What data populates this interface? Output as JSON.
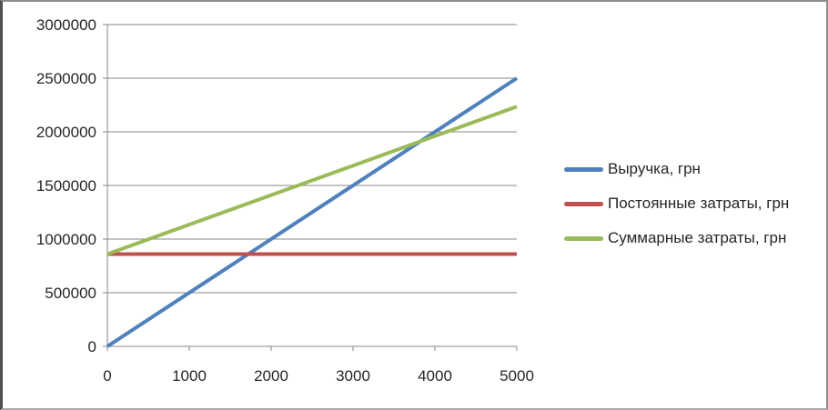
{
  "chart_data": {
    "type": "line",
    "title": "",
    "xlabel": "",
    "ylabel": "",
    "xlim": [
      0,
      5000
    ],
    "ylim": [
      0,
      3000000
    ],
    "x_ticks": [
      0,
      1000,
      2000,
      3000,
      4000,
      5000
    ],
    "y_ticks": [
      0,
      500000,
      1000000,
      1500000,
      2000000,
      2500000,
      3000000
    ],
    "grid": "horizontal",
    "legend_position": "right",
    "axis_color": "#878787",
    "gridline_color": "#878787",
    "tick_label_color": "#262626",
    "line_width": 4,
    "series": [
      {
        "name": "Выручка, грн",
        "color": "#4F81BD",
        "points": [
          [
            0,
            0
          ],
          [
            5000,
            2500000
          ]
        ]
      },
      {
        "name": "Постоянные затраты, грн",
        "color": "#C0504D",
        "points": [
          [
            0,
            860000
          ],
          [
            5000,
            860000
          ]
        ]
      },
      {
        "name": "Суммарные затраты, грн",
        "color": "#9BBB59",
        "points": [
          [
            0,
            860000
          ],
          [
            5000,
            2235000
          ]
        ]
      }
    ]
  }
}
